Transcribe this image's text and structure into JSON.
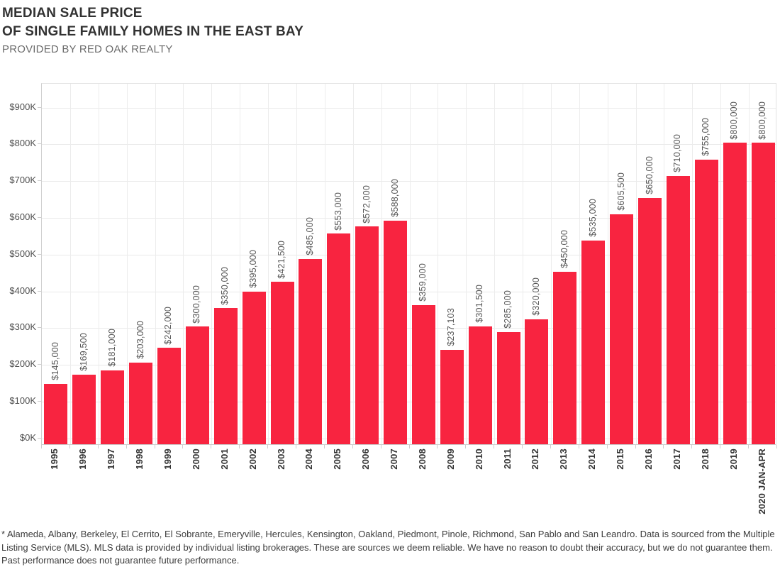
{
  "header": {
    "title_line1": "MEDIAN SALE PRICE",
    "title_line2": "OF SINGLE FAMILY HOMES IN THE EAST BAY",
    "subtitle": "PROVIDED BY RED OAK REALTY"
  },
  "chart_data": {
    "type": "bar",
    "title": "MEDIAN SALE PRICE OF SINGLE FAMILY HOMES IN THE EAST BAY",
    "subtitle": "PROVIDED BY RED OAK REALTY",
    "categories": [
      "1995",
      "1996",
      "1997",
      "1998",
      "1999",
      "2000",
      "2001",
      "2002",
      "2003",
      "2004",
      "2005",
      "2006",
      "2007",
      "2008",
      "2009",
      "2010",
      "2011",
      "2012",
      "2013",
      "2014",
      "2015",
      "2016",
      "2017",
      "2018",
      "2019",
      "2020 JAN-APR"
    ],
    "values": [
      145000,
      169500,
      181000,
      203000,
      242000,
      300000,
      350000,
      395000,
      421500,
      485000,
      553000,
      572000,
      588000,
      359000,
      237103,
      301500,
      285000,
      320000,
      450000,
      535000,
      605500,
      650000,
      710000,
      755000,
      800000,
      800000
    ],
    "bar_labels": [
      "$145,000",
      "$169,500",
      "$181,000",
      "$203,000",
      "$242,000",
      "$300,000",
      "$350,000",
      "$395,000",
      "$421,500",
      "$485,000",
      "$553,000",
      "$572,000",
      "$588,000",
      "$359,000",
      "$237,103",
      "$301,500",
      "$285,000",
      "$320,000",
      "$450,000",
      "$535,000",
      "$605,500",
      "$650,000",
      "$710,000",
      "$755,000",
      "$800,000",
      "$800,000"
    ],
    "y_tick_labels": [
      "$0K",
      "$100K",
      "$200K",
      "$300K",
      "$400K",
      "$500K",
      "$600K",
      "$700K",
      "$800K",
      "$900K"
    ],
    "y_tick_values": [
      0,
      100000,
      200000,
      300000,
      400000,
      500000,
      600000,
      700000,
      800000,
      900000
    ],
    "xlabel": "",
    "ylabel": "",
    "ylim": [
      -20000,
      965000
    ],
    "grid": true,
    "legend": "none",
    "bar_color": "#f82440",
    "label_rotation": "vertical-bottom-to-top"
  },
  "footer": {
    "disclaimer": "* Alameda, Albany, Berkeley, El Cerrito, El Sobrante, Emeryville, Hercules, Kensington, Oakland, Piedmont, Pinole, Richmond, San Pablo and San Leandro. Data is sourced from the Multiple Listing Service (MLS). MLS data is provided by individual listing brokerages. These are sources we deem reliable. We have no reason to doubt their accuracy, but we do not guarantee them. Past performance does not guarantee future performance."
  }
}
